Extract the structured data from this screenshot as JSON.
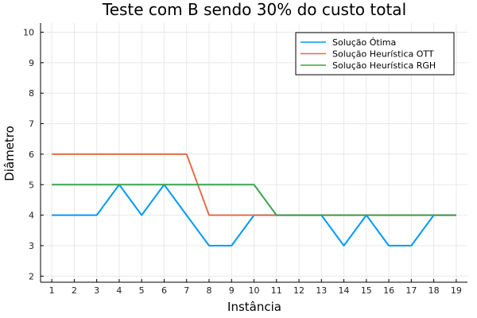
{
  "chart_data": {
    "type": "line",
    "title": "Teste com B sendo 30% do custo total",
    "xlabel": "Instância",
    "ylabel": "Diâmetro",
    "xlim": [
      0.5,
      19.5
    ],
    "ylim": [
      1.8,
      10.3
    ],
    "xticks": [
      1,
      2,
      3,
      4,
      5,
      6,
      7,
      8,
      9,
      10,
      11,
      12,
      13,
      14,
      15,
      16,
      17,
      18,
      19
    ],
    "yticks": [
      2,
      3,
      4,
      5,
      6,
      7,
      8,
      9,
      10
    ],
    "grid": true,
    "legend_position": "top-right",
    "x": [
      1,
      2,
      3,
      4,
      5,
      6,
      7,
      8,
      9,
      10,
      11,
      12,
      13,
      14,
      15,
      16,
      17,
      18,
      19
    ],
    "series": [
      {
        "name": "Solução Ótima",
        "color": "#009af9",
        "values": [
          4,
          4,
          4,
          5,
          4,
          5,
          4,
          3,
          3,
          4,
          4,
          4,
          4,
          3,
          4,
          3,
          3,
          4,
          4
        ]
      },
      {
        "name": "Solução Heurística OTT",
        "color": "#e26f46",
        "values": [
          6,
          6,
          6,
          6,
          6,
          6,
          6,
          4,
          4,
          4,
          4,
          4,
          4,
          4,
          4,
          4,
          4,
          4,
          4
        ]
      },
      {
        "name": "Solução Heurística RGH",
        "color": "#3da44d",
        "values": [
          5,
          5,
          5,
          5,
          5,
          5,
          5,
          5,
          5,
          5,
          4,
          4,
          4,
          4,
          4,
          4,
          4,
          4,
          4
        ]
      }
    ]
  }
}
